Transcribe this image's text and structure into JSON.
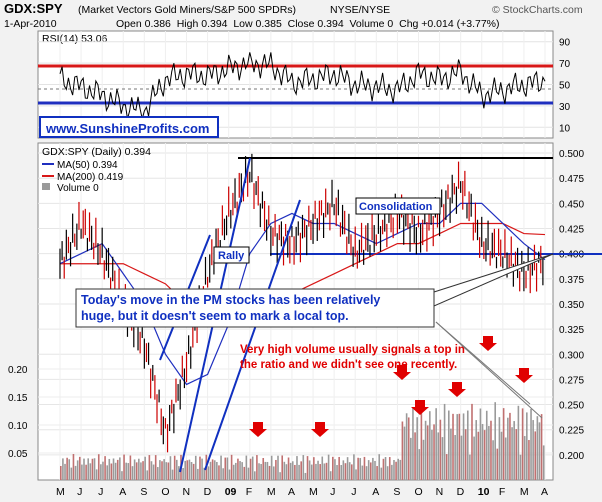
{
  "header": {
    "symbol": "GDX:SPY",
    "description": "(Market Vectors Gold Miners/S&P 500 SPDRs)",
    "exchange": "NYSE/NYSE",
    "watermark": "© StockCharts.com",
    "date": "1-Apr-2010",
    "ohlc": "Open 0.386  High 0.394  Low 0.385  Close 0.394  Volume 0  Chg +0.014 (+3.77%)"
  },
  "colors": {
    "price": "#000000",
    "down": "#cc0000",
    "ma50": "#1f2fbf",
    "ma200": "#d81818",
    "volume": "#9a9a9a",
    "annotation_blue": "#1030c0",
    "annotation_red": "#e00000",
    "panel_bg": "#ffffff",
    "outer_bg": "#f0f0f0"
  },
  "chart_data": [
    {
      "type": "line",
      "title": "RSI(14) 53.06",
      "y_ticks": [
        10,
        30,
        50,
        70,
        90
      ],
      "ylim": [
        0,
        100
      ],
      "reference_lines": [
        {
          "value": 70,
          "color": "#d81818"
        },
        {
          "value": 50,
          "style": "dashed"
        },
        {
          "value": 30,
          "color": "#1f2fbf"
        }
      ],
      "x": [
        "M",
        "J",
        "J",
        "A",
        "S",
        "O",
        "N",
        "D",
        "09",
        "F",
        "M",
        "A",
        "M",
        "J",
        "J",
        "A",
        "S",
        "O",
        "N",
        "D",
        "10",
        "F",
        "M",
        "A"
      ],
      "series": [
        {
          "name": "RSI(14)",
          "values": [
            55,
            48,
            40,
            30,
            25,
            55,
            60,
            58,
            65,
            70,
            68,
            52,
            55,
            60,
            50,
            48,
            45,
            60,
            55,
            62,
            40,
            45,
            50,
            53
          ]
        }
      ],
      "label": "www.SunshineProfits.com"
    },
    {
      "type": "line",
      "title": "GDX:SPY (Daily) 0.394",
      "legend": [
        {
          "name": "MA(50) 0.394",
          "color": "#1f2fbf"
        },
        {
          "name": "MA(200) 0.419",
          "color": "#d81818"
        },
        {
          "name": "Volume 0",
          "color": "#9a9a9a"
        }
      ],
      "y_ticks": [
        "0.200",
        "0.225",
        "0.250",
        "0.275",
        "0.300",
        "0.325",
        "0.350",
        "0.375",
        "0.400",
        "0.425",
        "0.450",
        "0.475",
        "0.500"
      ],
      "ylim": [
        0.175,
        0.51
      ],
      "volume_ticks": [
        "0.05",
        "0.10",
        "0.15",
        "0.20"
      ],
      "x": [
        "M",
        "J",
        "J",
        "A",
        "S",
        "O",
        "N",
        "D",
        "09",
        "F",
        "M",
        "A",
        "M",
        "J",
        "J",
        "A",
        "S",
        "O",
        "N",
        "D",
        "10",
        "F",
        "M",
        "A"
      ],
      "series": [
        {
          "name": "GDX:SPY",
          "values": [
            0.39,
            0.43,
            0.4,
            0.35,
            0.31,
            0.22,
            0.29,
            0.38,
            0.44,
            0.48,
            0.42,
            0.41,
            0.43,
            0.45,
            0.4,
            0.42,
            0.44,
            0.42,
            0.44,
            0.47,
            0.41,
            0.4,
            0.38,
            0.394
          ]
        },
        {
          "name": "MA(50) 0.394",
          "values": [
            0.39,
            0.4,
            0.41,
            0.38,
            0.35,
            0.3,
            0.27,
            0.28,
            0.33,
            0.4,
            0.43,
            0.44,
            0.43,
            0.43,
            0.42,
            0.41,
            0.42,
            0.43,
            0.43,
            0.45,
            0.45,
            0.43,
            0.41,
            0.394
          ]
        },
        {
          "name": "MA(200) 0.419",
          "values": [
            0.39,
            0.39,
            0.39,
            0.39,
            0.38,
            0.37,
            0.35,
            0.34,
            0.33,
            0.34,
            0.35,
            0.36,
            0.37,
            0.38,
            0.39,
            0.4,
            0.41,
            0.41,
            0.42,
            0.43,
            0.43,
            0.43,
            0.42,
            0.419
          ]
        }
      ],
      "volume_arrows_months": [
        "D",
        "M",
        "O",
        "N",
        "D",
        "F",
        "M",
        "A"
      ],
      "annotations": {
        "rally": "Rally",
        "consolidation": "Consolidation",
        "main_text": "Today's move in the PM stocks has been relatively huge, but it doesn't seem to mark a local top.",
        "volume_text": "Very high volume usually signals a top in the ratio and we didn't see one recently."
      },
      "support_level": 0.375,
      "resistance_level": 0.5
    }
  ]
}
